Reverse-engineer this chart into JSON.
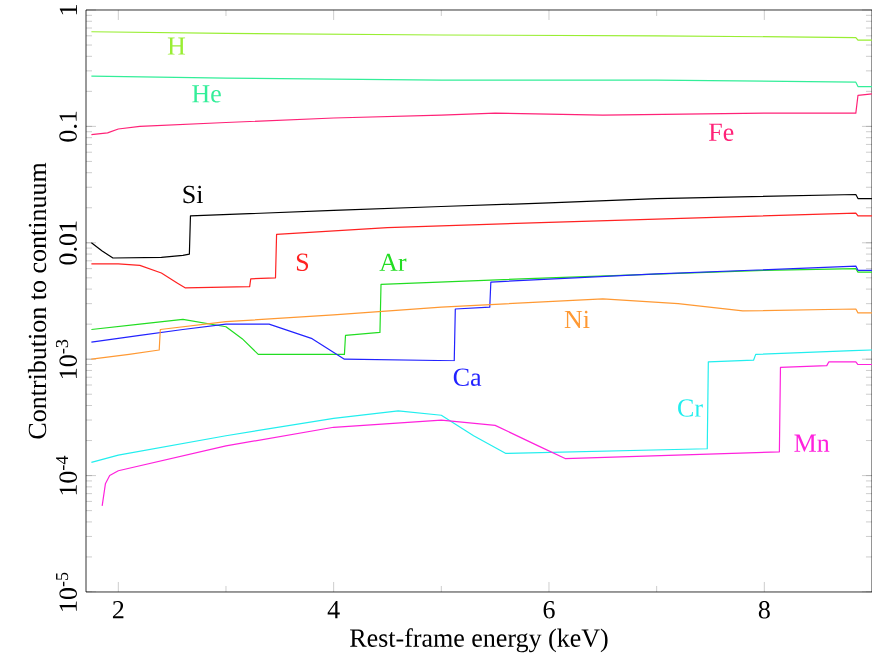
{
  "chart_data": {
    "type": "line",
    "xlabel": "Rest-frame energy (keV)",
    "ylabel": "Contribution to continuum",
    "log": "y",
    "xlim": [
      1.7,
      9.0
    ],
    "ylim": [
      1e-05,
      1
    ],
    "xticks": [
      2,
      4,
      6,
      8
    ],
    "yticks": [
      {
        "value": 1e-05,
        "label": "10$^{-5}$"
      },
      {
        "value": 0.0001,
        "label": "10$^{-4}$"
      },
      {
        "value": 0.001,
        "label": "10$^{-3}$"
      },
      0.01,
      0.1,
      1
    ],
    "series": [
      {
        "name": "H",
        "color": "#99ee33",
        "x": [
          1.75,
          3,
          5,
          7,
          8.85,
          8.87,
          9.0
        ],
        "values": [
          0.65,
          0.63,
          0.61,
          0.6,
          0.58,
          0.55,
          0.55
        ]
      },
      {
        "name": "He",
        "color": "#33ee99",
        "x": [
          1.75,
          3,
          5,
          7,
          8.85,
          8.87,
          9.0
        ],
        "values": [
          0.27,
          0.26,
          0.25,
          0.25,
          0.24,
          0.22,
          0.22
        ]
      },
      {
        "name": "Fe",
        "color": "#ff2277",
        "x": [
          1.75,
          1.9,
          2.0,
          2.2,
          3,
          4,
          5,
          5.5,
          6.5,
          8,
          8.85,
          8.87,
          9.0
        ],
        "values": [
          0.085,
          0.088,
          0.095,
          0.1,
          0.108,
          0.118,
          0.125,
          0.13,
          0.125,
          0.13,
          0.13,
          0.185,
          0.19
        ]
      },
      {
        "name": "Si",
        "color": "#000000",
        "x": [
          1.75,
          1.85,
          1.95,
          2.4,
          2.6,
          2.66,
          2.67,
          4,
          5,
          6,
          7,
          8.85,
          8.87,
          9.0
        ],
        "values": [
          0.01,
          0.0085,
          0.0074,
          0.0075,
          0.0078,
          0.008,
          0.017,
          0.019,
          0.0205,
          0.022,
          0.024,
          0.026,
          0.024,
          0.024
        ]
      },
      {
        "name": "S",
        "color": "#ff2222",
        "x": [
          1.75,
          2.0,
          2.2,
          2.4,
          2.55,
          2.62,
          3.22,
          3.23,
          3.46,
          3.47,
          4.5,
          6,
          8.85,
          8.87,
          9.0
        ],
        "values": [
          0.0066,
          0.0066,
          0.0064,
          0.0055,
          0.0045,
          0.0041,
          0.0042,
          0.0049,
          0.005,
          0.0118,
          0.0135,
          0.015,
          0.018,
          0.017,
          0.017
        ]
      },
      {
        "name": "Ar",
        "color": "#22dd22",
        "x": [
          1.75,
          2.2,
          2.6,
          3.0,
          3.15,
          3.3,
          4.1,
          4.11,
          4.43,
          4.44,
          6,
          8,
          8.85,
          8.87,
          9.0
        ],
        "values": [
          0.0018,
          0.002,
          0.0022,
          0.0019,
          0.0015,
          0.0011,
          0.0011,
          0.0016,
          0.0017,
          0.0044,
          0.005,
          0.0058,
          0.006,
          0.0056,
          0.0056
        ]
      },
      {
        "name": "Ca",
        "color": "#2222ff",
        "x": [
          1.75,
          2.2,
          2.6,
          3.0,
          3.4,
          3.8,
          4.1,
          5.12,
          5.13,
          5.45,
          5.46,
          7,
          8.85,
          8.87,
          9.0
        ],
        "values": [
          0.0014,
          0.0016,
          0.0018,
          0.002,
          0.002,
          0.0015,
          0.001,
          0.00097,
          0.0027,
          0.0028,
          0.0046,
          0.0054,
          0.0063,
          0.0058,
          0.0058
        ]
      },
      {
        "name": "Ni",
        "color": "#ff9933",
        "x": [
          1.75,
          2.1,
          2.38,
          2.39,
          3,
          4,
          5,
          6.5,
          7.2,
          7.8,
          8.85,
          8.87,
          9.0
        ],
        "values": [
          0.001,
          0.0011,
          0.0012,
          0.0018,
          0.0021,
          0.0024,
          0.0028,
          0.0033,
          0.003,
          0.0026,
          0.0027,
          0.0025,
          0.0025
        ]
      },
      {
        "name": "Cr",
        "color": "#22eeee",
        "x": [
          1.75,
          2,
          3,
          4,
          4.6,
          5.0,
          5.3,
          5.6,
          7.47,
          7.48,
          7.9,
          7.92,
          9.0
        ],
        "values": [
          0.00013,
          0.00015,
          0.00022,
          0.00031,
          0.00036,
          0.00033,
          0.00022,
          0.000155,
          0.00017,
          0.00095,
          0.00098,
          0.0011,
          0.0012
        ]
      },
      {
        "name": "Mn",
        "color": "#ff22dd",
        "x": [
          1.85,
          1.88,
          1.92,
          2,
          3,
          4,
          5,
          5.5,
          5.9,
          6.15,
          8.14,
          8.15,
          8.58,
          8.6,
          8.85,
          8.87,
          9.0
        ],
        "values": [
          5.5e-05,
          8.5e-05,
          0.0001,
          0.00011,
          0.00018,
          0.00026,
          0.0003,
          0.00027,
          0.00018,
          0.00014,
          0.00016,
          0.00085,
          0.00088,
          0.00095,
          0.00095,
          0.0009,
          0.0009
        ]
      }
    ]
  }
}
